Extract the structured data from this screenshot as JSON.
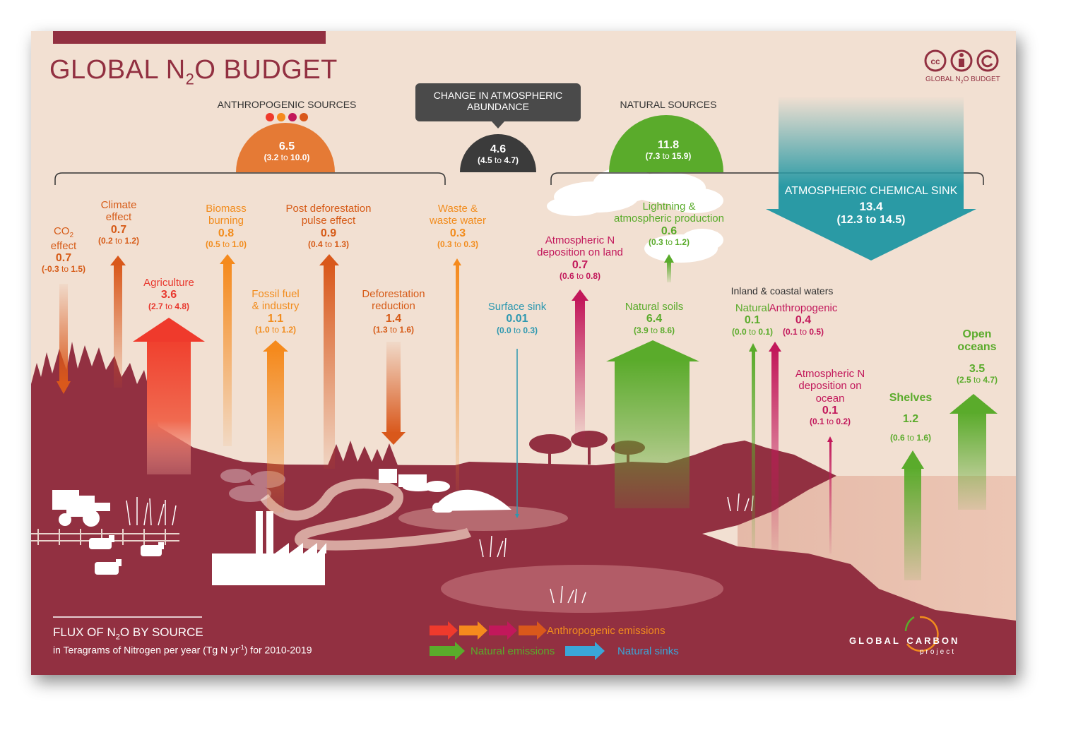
{
  "title": {
    "pre": "GLOBAL N",
    "sub": "2",
    "post": "O BUDGET"
  },
  "license": {
    "label_pre": "GLOBAL N",
    "label_sub": "2",
    "label_post": "O BUDGET"
  },
  "change_box": {
    "line1": "CHANGE IN ATMOSPHERIC",
    "line2": "ABUNDANCE"
  },
  "change": {
    "value": "4.6",
    "range_lo": "4.5",
    "range_to": "to",
    "range_hi": "4.7"
  },
  "anthropogenic_header": "ANTHROPOGENIC SOURCES",
  "anthropogenic_total": {
    "value": "6.5",
    "range_lo": "3.2",
    "range_to": "to",
    "range_hi": "10.0"
  },
  "natural_header": "NATURAL SOURCES",
  "natural_total": {
    "value": "11.8",
    "range_lo": "7.3",
    "range_to": "to",
    "range_hi": "15.9"
  },
  "sink": {
    "title": "ATMOSPHERIC CHEMICAL SINK",
    "value": "13.4",
    "range": "(12.3 to 14.5)"
  },
  "fluxes": [
    {
      "label1": "CO",
      "label1_sub": "2",
      "label2": "effect",
      "value": "0.7",
      "lo": "-0.3",
      "to": "to",
      "hi": "1.5"
    },
    {
      "label1": "Climate",
      "label2": "effect",
      "value": "0.7",
      "lo": "0.2",
      "to": "to",
      "hi": "1.2"
    },
    {
      "label1": "Agriculture",
      "value": "3.6",
      "lo": "2.7",
      "to": "to",
      "hi": "4.8"
    },
    {
      "label1": "Biomass",
      "label2": "burning",
      "value": "0.8",
      "lo": "0.5",
      "to": "to",
      "hi": "1.0"
    },
    {
      "label1": "Fossil fuel",
      "label2": "& industry",
      "value": "1.1",
      "lo": "1.0",
      "to": "to",
      "hi": "1.2"
    },
    {
      "label1": "Post deforestation",
      "label2": "pulse effect",
      "value": "0.9",
      "lo": "0.4",
      "to": "to",
      "hi": "1.3"
    },
    {
      "label1": "Deforestation",
      "label2": "reduction",
      "value": "1.4",
      "lo": "1.3",
      "to": "to",
      "hi": "1.6"
    },
    {
      "label1": "Waste &",
      "label2": "waste water",
      "value": "0.3",
      "lo": "0.3",
      "to": "to",
      "hi": "0.3"
    },
    {
      "label1": "Surface sink",
      "value": "0.01",
      "lo": "0.0",
      "to": "to",
      "hi": "0.3"
    },
    {
      "label1": "Atmospheric N",
      "label2": "deposition on land",
      "value": "0.7",
      "lo": "0.6",
      "to": "to",
      "hi": "0.8"
    },
    {
      "label1": "Lightning &",
      "label2": "atmospheric production",
      "value": "0.6",
      "lo": "0.3",
      "to": "to",
      "hi": "1.2"
    },
    {
      "label1": "Natural soils",
      "value": "6.4",
      "lo": "3.9",
      "to": "to",
      "hi": "8.6"
    },
    {
      "label1": "Natural",
      "value": "0.1",
      "lo": "0.0",
      "to": "to",
      "hi": "0.1"
    },
    {
      "label1": "Anthropogenic",
      "value": "0.4",
      "lo": "0.1",
      "to": "to",
      "hi": "0.5"
    },
    {
      "label1": "Atmospheric N",
      "label2": "deposition on",
      "label3": "ocean",
      "value": "0.1",
      "lo": "0.1",
      "to": "to",
      "hi": "0.2"
    },
    {
      "label1": "Shelves",
      "value": "1.2",
      "lo": "0.6",
      "to": "to",
      "hi": "1.6"
    },
    {
      "label1": "Open",
      "label2": "oceans",
      "value": "3.5",
      "lo": "2.5",
      "to": "to",
      "hi": "4.7"
    }
  ],
  "inland_header": "Inland & coastal waters",
  "footer": {
    "title_pre": "FLUX OF N",
    "title_sub": "2",
    "title_post": "O BY SOURCE",
    "subtitle_pre": "in Teragrams of Nitrogen per year (Tg N yr",
    "subtitle_sup": "-1",
    "subtitle_post": ") for 2010-2019"
  },
  "legend": {
    "anthropogenic": "Anthropogenic emissions",
    "natural": "Natural emissions",
    "sinks": "Natural sinks"
  },
  "logo": {
    "word1": "GLOBAL",
    "word2": "CARBON",
    "word3": "project"
  },
  "colors": {
    "maroon": "#923041",
    "background": "#f2e0d2",
    "sink_teal": "#2a9aa5",
    "natural_green": "#5aab2b",
    "anthro_orange": "#e57a35"
  }
}
